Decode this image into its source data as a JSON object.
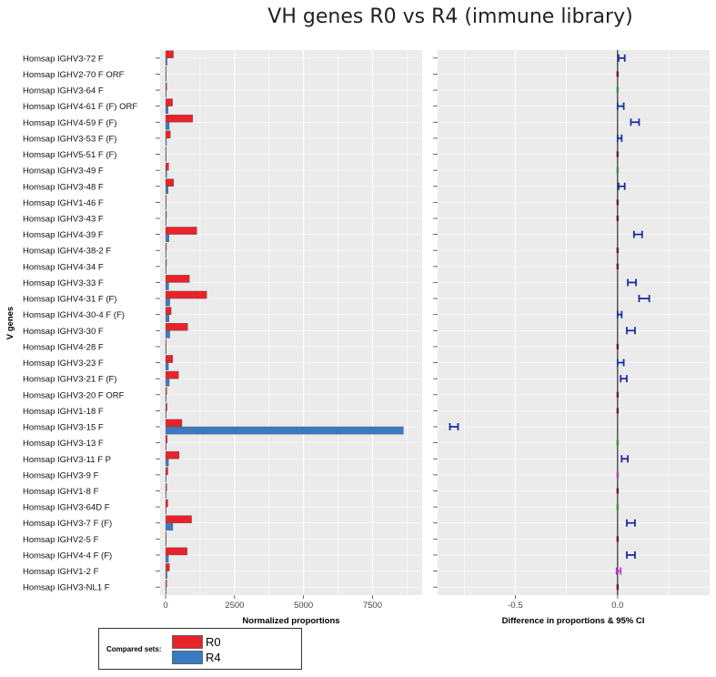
{
  "figure": {
    "title": "VH genes R0 vs R4 (immune library)"
  },
  "legend": {
    "title": "Compared sets:",
    "items": [
      {
        "label": "R0",
        "color": "#e8222a"
      },
      {
        "label": "R4",
        "color": "#3a7bbf"
      }
    ]
  },
  "chart_data": [
    {
      "type": "bar",
      "orientation": "horizontal",
      "title": "",
      "xlabel": "Normalized proportions",
      "ylabel": "V genes",
      "xlim": [
        -200,
        9300
      ],
      "xticks": [
        0,
        2500,
        5000,
        7500
      ],
      "grid": true,
      "categories": [
        "Homsap IGHV3-72 F",
        "Homsap IGHV2-70 F ORF",
        "Homsap IGHV3-64 F",
        "Homsap IGHV4-61 F (F) ORF",
        "Homsap IGHV4-59 F (F)",
        "Homsap IGHV3-53 F (F)",
        "Homsap IGHV5-51 F (F)",
        "Homsap IGHV3-49 F",
        "Homsap IGHV3-48 F",
        "Homsap IGHV1-46 F",
        "Homsap IGHV3-43 F",
        "Homsap IGHV4-39 F",
        "Homsap IGHV4-38-2 F",
        "Homsap IGHV4-34 F",
        "Homsap IGHV3-33 F",
        "Homsap IGHV4-31 F (F)",
        "Homsap IGHV4-30-4 F (F)",
        "Homsap IGHV3-30 F",
        "Homsap IGHV4-28 F",
        "Homsap IGHV3-23 F",
        "Homsap IGHV3-21 F (F)",
        "Homsap IGHV3-20 F ORF",
        "Homsap IGHV1-18 F",
        "Homsap IGHV3-15 F",
        "Homsap IGHV3-13 F",
        "Homsap IGHV3-11 F P",
        "Homsap IGHV3-9 F",
        "Homsap IGHV1-8 F",
        "Homsap IGHV3-64D F",
        "Homsap IGHV3-7 F (F)",
        "Homsap IGHV2-5 F",
        "Homsap IGHV4-4 F (F)",
        "Homsap IGHV1-2 F",
        "Homsap IGHV3-NL1 F"
      ],
      "series": [
        {
          "name": "R0",
          "color": "#e8222a",
          "values": [
            280,
            20,
            40,
            250,
            980,
            170,
            20,
            110,
            290,
            20,
            30,
            1130,
            30,
            30,
            860,
            1490,
            200,
            800,
            20,
            260,
            470,
            40,
            50,
            590,
            60,
            490,
            80,
            40,
            80,
            940,
            20,
            780,
            140,
            40
          ]
        },
        {
          "name": "R4",
          "color": "#3a7bbf",
          "values": [
            50,
            5,
            10,
            90,
            130,
            30,
            5,
            40,
            90,
            5,
            5,
            120,
            5,
            5,
            110,
            150,
            120,
            150,
            5,
            100,
            130,
            10,
            20,
            8620,
            10,
            100,
            10,
            5,
            20,
            260,
            5,
            100,
            50,
            20
          ]
        }
      ]
    },
    {
      "type": "scatter",
      "subtype": "point-with-95%-CI",
      "title": "",
      "xlabel": "Difference in proportions & 95% CI",
      "ylabel": "",
      "xlim": [
        -0.88,
        0.45
      ],
      "xticks": [
        -0.5,
        0.0
      ],
      "reference_line_x": 0,
      "grid": true,
      "categories_ref": "same as bar chart rows",
      "points": [
        {
          "d": 0.02,
          "lo": 0.005,
          "hi": 0.035,
          "color": "#1a2f9e"
        },
        {
          "d": 0.0,
          "lo": -0.002,
          "hi": 0.002,
          "color": "#7a1a1a"
        },
        {
          "d": 0.0,
          "lo": -0.003,
          "hi": 0.003,
          "color": "#2ca02c"
        },
        {
          "d": 0.015,
          "lo": 0.0,
          "hi": 0.03,
          "color": "#1a2f9e"
        },
        {
          "d": 0.085,
          "lo": 0.065,
          "hi": 0.105,
          "color": "#1a2f9e"
        },
        {
          "d": 0.01,
          "lo": 0.0,
          "hi": 0.02,
          "color": "#1a2f9e"
        },
        {
          "d": 0.0,
          "lo": -0.002,
          "hi": 0.002,
          "color": "#7a1a1a"
        },
        {
          "d": 0.0,
          "lo": -0.003,
          "hi": 0.005,
          "color": "#2ca02c"
        },
        {
          "d": 0.02,
          "lo": 0.005,
          "hi": 0.035,
          "color": "#1a2f9e"
        },
        {
          "d": 0.0,
          "lo": -0.002,
          "hi": 0.002,
          "color": "#7a1a1a"
        },
        {
          "d": 0.0,
          "lo": -0.002,
          "hi": 0.002,
          "color": "#7a1a1a"
        },
        {
          "d": 0.1,
          "lo": 0.08,
          "hi": 0.12,
          "color": "#1a2f9e"
        },
        {
          "d": 0.0,
          "lo": -0.002,
          "hi": 0.002,
          "color": "#7a1a1a"
        },
        {
          "d": 0.0,
          "lo": -0.002,
          "hi": 0.002,
          "color": "#7a1a1a"
        },
        {
          "d": 0.07,
          "lo": 0.05,
          "hi": 0.09,
          "color": "#1a2f9e"
        },
        {
          "d": 0.13,
          "lo": 0.105,
          "hi": 0.155,
          "color": "#1a2f9e"
        },
        {
          "d": 0.01,
          "lo": 0.0,
          "hi": 0.02,
          "color": "#1a2f9e"
        },
        {
          "d": 0.065,
          "lo": 0.045,
          "hi": 0.085,
          "color": "#1a2f9e"
        },
        {
          "d": 0.0,
          "lo": -0.002,
          "hi": 0.002,
          "color": "#7a1a1a"
        },
        {
          "d": 0.015,
          "lo": 0.0,
          "hi": 0.03,
          "color": "#1a2f9e"
        },
        {
          "d": 0.03,
          "lo": 0.015,
          "hi": 0.045,
          "color": "#1a2f9e"
        },
        {
          "d": 0.0,
          "lo": -0.002,
          "hi": 0.002,
          "color": "#7a1a1a"
        },
        {
          "d": 0.0,
          "lo": -0.002,
          "hi": 0.002,
          "color": "#7a1a1a"
        },
        {
          "d": -0.8,
          "lo": -0.82,
          "hi": -0.78,
          "color": "#1a2f9e"
        },
        {
          "d": 0.0,
          "lo": -0.002,
          "hi": 0.002,
          "color": "#2ca02c"
        },
        {
          "d": 0.035,
          "lo": 0.02,
          "hi": 0.05,
          "color": "#1a2f9e"
        },
        {
          "d": 0.0,
          "lo": -0.003,
          "hi": 0.005,
          "color": "#cc33cc"
        },
        {
          "d": 0.0,
          "lo": -0.002,
          "hi": 0.002,
          "color": "#7a1a1a"
        },
        {
          "d": 0.0,
          "lo": -0.002,
          "hi": 0.002,
          "color": "#2ca02c"
        },
        {
          "d": 0.065,
          "lo": 0.045,
          "hi": 0.085,
          "color": "#1a2f9e"
        },
        {
          "d": 0.0,
          "lo": -0.002,
          "hi": 0.002,
          "color": "#7a1a1a"
        },
        {
          "d": 0.065,
          "lo": 0.045,
          "hi": 0.085,
          "color": "#1a2f9e"
        },
        {
          "d": 0.005,
          "lo": -0.005,
          "hi": 0.015,
          "color": "#cc33cc"
        },
        {
          "d": 0.0,
          "lo": -0.002,
          "hi": 0.002,
          "color": "#7a1a1a"
        }
      ]
    }
  ]
}
